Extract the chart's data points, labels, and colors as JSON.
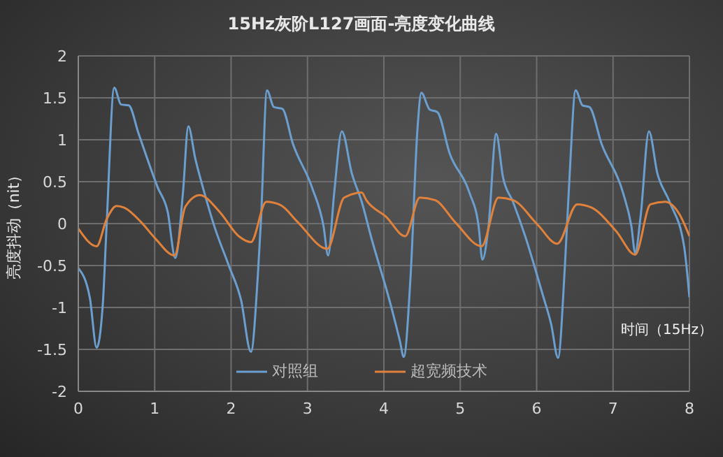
{
  "chart_data": {
    "type": "line",
    "title": "15Hz灰阶L127画面-亮度变化曲线",
    "xlabel": "时间（15Hz）",
    "ylabel": "亮度抖动（nit）",
    "xlim": [
      0,
      8
    ],
    "xticks": [
      0,
      1,
      2,
      3,
      4,
      5,
      6,
      7,
      8
    ],
    "ylim": [
      -2,
      2
    ],
    "yticks": [
      -2,
      -1.5,
      -1,
      -0.5,
      0,
      0.5,
      1,
      1.5,
      2
    ],
    "grid": true,
    "legend": "bottom",
    "marker": "none",
    "line_style": "solid",
    "series": [
      {
        "name": "对照组",
        "color": "#6b9fd0",
        "x": [
          0,
          0.15,
          0.24,
          0.32,
          0.37,
          0.47,
          0.56,
          0.66,
          0.79,
          1.04,
          1.17,
          1.27,
          1.37,
          1.44,
          1.53,
          1.65,
          1.78,
          1.97,
          2.13,
          2.26,
          2.35,
          2.39,
          2.47,
          2.56,
          2.67,
          2.81,
          3.06,
          3.21,
          3.27,
          3.35,
          3.45,
          3.58,
          3.71,
          3.83,
          4.09,
          4.21,
          4.26,
          4.35,
          4.44,
          4.49,
          4.6,
          4.7,
          4.86,
          5.12,
          5.24,
          5.29,
          5.37,
          5.47,
          5.56,
          5.69,
          5.85,
          6.08,
          6.19,
          6.28,
          6.37,
          6.43,
          6.51,
          6.6,
          6.69,
          6.85,
          7.13,
          7.24,
          7.29,
          7.36,
          7.47,
          7.58,
          7.74,
          7.93,
          8
        ],
        "values": [
          -0.53,
          -0.88,
          -1.48,
          -0.97,
          -0.03,
          1.62,
          1.42,
          1.41,
          1.07,
          0.43,
          0.14,
          -0.41,
          0.37,
          1.16,
          0.78,
          0.37,
          -0.03,
          -0.5,
          -0.91,
          -1.53,
          -0.62,
          0.02,
          1.59,
          1.39,
          1.37,
          0.95,
          0.43,
          -0.03,
          -0.38,
          0.37,
          1.1,
          0.6,
          0.26,
          -0.15,
          -0.97,
          -1.4,
          -1.59,
          -0.62,
          1.13,
          1.56,
          1.36,
          1.33,
          0.84,
          0.37,
          -0.03,
          -0.43,
          -0.03,
          1.07,
          0.55,
          0.26,
          -0.15,
          -0.85,
          -1.2,
          -1.6,
          -0.5,
          0.55,
          1.59,
          1.41,
          1.39,
          0.95,
          0.37,
          -0.03,
          -0.35,
          0.08,
          1.1,
          0.6,
          0.26,
          -0.27,
          -0.88
        ]
      },
      {
        "name": "超宽频技术",
        "color": "#e0823c",
        "x": [
          0,
          0.24,
          0.37,
          0.5,
          0.6,
          0.82,
          1.01,
          1.26,
          1.4,
          1.59,
          1.85,
          2.1,
          2.26,
          2.46,
          2.65,
          2.87,
          3.26,
          3.48,
          3.71,
          3.77,
          4.03,
          4.28,
          4.47,
          4.67,
          4.93,
          5.28,
          5.5,
          5.69,
          6.01,
          6.27,
          6.53,
          6.72,
          7.04,
          7.29,
          7.49,
          7.68,
          7.87,
          8
        ],
        "values": [
          -0.06,
          -0.27,
          0.05,
          0.21,
          0.19,
          0.02,
          -0.18,
          -0.38,
          0.2,
          0.34,
          0.14,
          -0.15,
          -0.22,
          0.26,
          0.22,
          0.02,
          -0.3,
          0.31,
          0.37,
          0.28,
          0.08,
          -0.15,
          0.31,
          0.28,
          0.02,
          -0.27,
          0.31,
          0.28,
          -0.01,
          -0.24,
          0.23,
          0.19,
          -0.09,
          -0.37,
          0.23,
          0.26,
          0.11,
          -0.15
        ]
      }
    ]
  }
}
